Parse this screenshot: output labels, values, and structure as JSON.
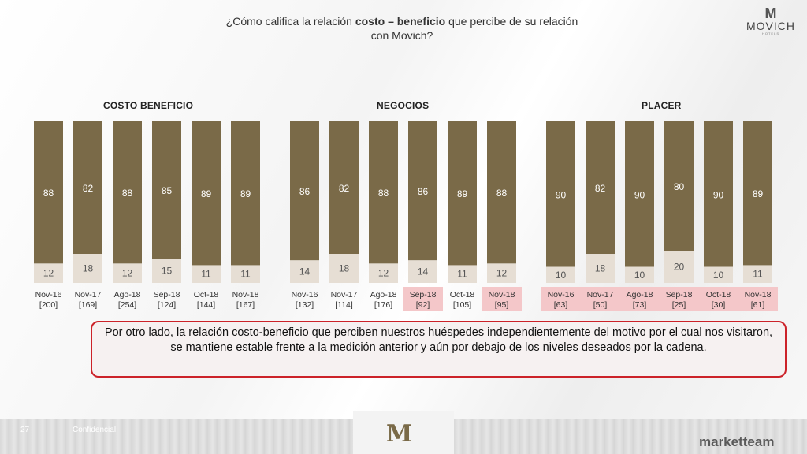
{
  "header": {
    "question_pre": "¿Cómo califica la relación ",
    "question_bold": "costo – beneficio",
    "question_post": " que percibe de su relación",
    "question_line2": "con Movich?",
    "logo_brand": "MOVICH",
    "logo_sub": "HOTELS"
  },
  "note": "Por otro lado, la relación costo-beneficio que perciben nuestros huéspedes independientemente del motivo por el cual nos visitaron, se mantiene estable frente a la medición anterior y aún por debajo de los niveles deseados por la cadena.",
  "footer": {
    "page_number": "27",
    "confidential": "Confidencial",
    "brand": "marketteam"
  },
  "colors": {
    "top_bar": "#7a6a48",
    "bottom_bar": "#e6ded4",
    "highlight": "#f4c7c9"
  },
  "chart_data": [
    {
      "type": "bar",
      "title": "COSTO BENEFICIO",
      "categories": [
        "Nov-16",
        "Nov-17",
        "Ago-18",
        "Sep-18",
        "Oct-18",
        "Nov-18"
      ],
      "bases": [
        "[200]",
        "[169]",
        "[254]",
        "[124]",
        "[144]",
        "[167]"
      ],
      "highlighted": [
        false,
        false,
        false,
        false,
        false,
        false
      ],
      "series": [
        {
          "values": [
            88,
            82,
            88,
            85,
            89,
            89
          ]
        },
        {
          "values": [
            12,
            18,
            12,
            15,
            11,
            11
          ]
        }
      ],
      "stacked": true,
      "ylim": [
        0,
        100
      ]
    },
    {
      "type": "bar",
      "title": "NEGOCIOS",
      "categories": [
        "Nov-16",
        "Nov-17",
        "Ago-18",
        "Sep-18",
        "Oct-18",
        "Nov-18"
      ],
      "bases": [
        "[132]",
        "[114]",
        "[176]",
        "[92]",
        "[105]",
        "[95]"
      ],
      "highlighted": [
        false,
        false,
        false,
        true,
        false,
        true
      ],
      "series": [
        {
          "values": [
            86,
            82,
            88,
            86,
            89,
            88
          ]
        },
        {
          "values": [
            14,
            18,
            12,
            14,
            11,
            12
          ]
        }
      ],
      "stacked": true,
      "ylim": [
        0,
        100
      ]
    },
    {
      "type": "bar",
      "title": "PLACER",
      "categories": [
        "Nov-16",
        "Nov-17",
        "Ago-18",
        "Sep-18",
        "Oct-18",
        "Nov-18"
      ],
      "bases": [
        "[63]",
        "[50]",
        "[73]",
        "[25]",
        "[30]",
        "[61]"
      ],
      "highlighted": [
        true,
        true,
        true,
        true,
        true,
        true
      ],
      "series": [
        {
          "values": [
            90,
            82,
            90,
            80,
            90,
            89
          ]
        },
        {
          "values": [
            10,
            18,
            10,
            20,
            10,
            11
          ]
        }
      ],
      "stacked": true,
      "ylim": [
        0,
        100
      ]
    }
  ]
}
